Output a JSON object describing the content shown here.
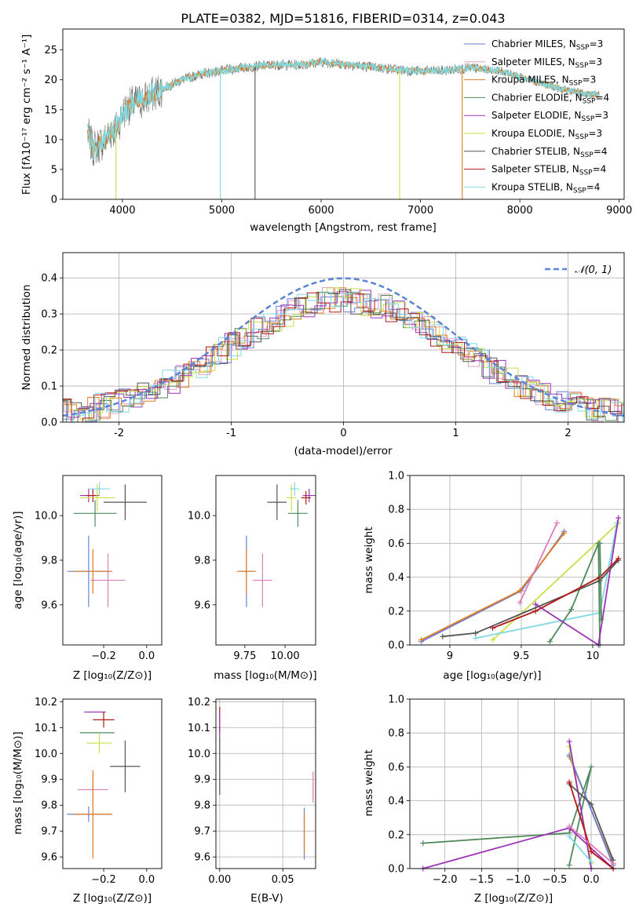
{
  "figure": {
    "title": "PLATE=0382, MJD=51816, FIBERID=0314, z=0.043"
  },
  "colors": {
    "Chabrier MILES": "#6b7fd7",
    "Salpeter MILES": "#e0a0c8",
    "Kroupa MILES": "#e07b22",
    "Chabrier ELODIE": "#4f8a5a",
    "Salpeter ELODIE": "#9b33b8",
    "Kroupa ELODIE": "#c9e04a",
    "Chabrier STELIB": "#555555",
    "Salpeter STELIB": "#b31818",
    "Kroupa STELIB": "#7fdbe0",
    "pink_model": "#e07ab8",
    "grid": "#b0b0b0",
    "norm_curve": "#5b84d6"
  },
  "chart_data": [
    {
      "panel": "spectrum",
      "type": "line",
      "xlabel": "wavelength [Angstrom, rest frame]",
      "ylabel": "Flux [fλ10⁻¹⁷ erg cm⁻² s⁻¹ A⁻¹]",
      "xlim": [
        3400,
        9050
      ],
      "ylim": [
        0,
        28.5
      ],
      "xticks": [
        4000,
        5000,
        6000,
        7000,
        8000,
        9000
      ],
      "yticks": [
        0,
        5,
        10,
        15,
        20,
        25
      ],
      "grid": false,
      "legend_position": "top-right",
      "continuum": {
        "x": [
          3650,
          3700,
          3800,
          3900,
          3950,
          4000,
          4100,
          4200,
          4400,
          4600,
          4800,
          5000,
          5200,
          5500,
          5800,
          6000,
          6300,
          6600,
          6900,
          7200,
          7500,
          7800,
          8100,
          8400,
          8700,
          8800
        ],
        "y": [
          11,
          8.5,
          9.5,
          11.5,
          12,
          14.5,
          16,
          16.5,
          18.5,
          20,
          21,
          21.5,
          22,
          22.5,
          22.5,
          23,
          22.5,
          22,
          21.5,
          21.5,
          22,
          21.5,
          20,
          18.5,
          17.5,
          17.5
        ]
      },
      "series": [
        {
          "name": "Chabrier MILES, N_SSP=3",
          "label_main": "Chabrier MILES, N",
          "label_sub": "SSP",
          "label_tail": "=3",
          "color_key": "Chabrier MILES"
        },
        {
          "name": "Salpeter MILES, N_SSP=3",
          "label_main": "Salpeter MILES, N",
          "label_sub": "SSP",
          "label_tail": "=3",
          "color_key": "Salpeter MILES"
        },
        {
          "name": "Kroupa MILES, N_SSP=3",
          "label_main": "Kroupa MILES, N",
          "label_sub": "SSP",
          "label_tail": "=3",
          "color_key": "Kroupa MILES"
        },
        {
          "name": "Chabrier ELODIE, N_SSP=4",
          "label_main": "Chabrier ELODIE, N",
          "label_sub": "SSP",
          "label_tail": "=4",
          "color_key": "Chabrier ELODIE"
        },
        {
          "name": "Salpeter ELODIE, N_SSP=3",
          "label_main": "Salpeter ELODIE, N",
          "label_sub": "SSP",
          "label_tail": "=3",
          "color_key": "Salpeter ELODIE"
        },
        {
          "name": "Kroupa ELODIE, N_SSP=3",
          "label_main": "Kroupa ELODIE, N",
          "label_sub": "SSP",
          "label_tail": "=3",
          "color_key": "Kroupa ELODIE"
        },
        {
          "name": "Chabrier STELIB, N_SSP=4",
          "label_main": "Chabrier STELIB, N",
          "label_sub": "SSP",
          "label_tail": "=4",
          "color_key": "Chabrier STELIB"
        },
        {
          "name": "Salpeter STELIB, N_SSP=4",
          "label_main": "Salpeter STELIB, N",
          "label_sub": "SSP",
          "label_tail": "=4",
          "color_key": "Salpeter STELIB"
        },
        {
          "name": "Kroupa STELIB, N_SSP=4",
          "label_main": "Kroupa STELIB, N",
          "label_sub": "SSP",
          "label_tail": "=4",
          "color_key": "Kroupa STELIB"
        }
      ],
      "dropouts": [
        {
          "x": 3935,
          "color_key": "Kroupa ELODIE"
        },
        {
          "x": 4985,
          "color_key": "Kroupa STELIB"
        },
        {
          "x": 5335,
          "color_key": "Chabrier STELIB"
        },
        {
          "x": 6790,
          "color_key": "Kroupa ELODIE"
        },
        {
          "x": 7420,
          "color_key": "Kroupa MILES"
        }
      ]
    },
    {
      "panel": "residuals",
      "type": "step",
      "xlabel": "(data-model)/error",
      "ylabel": "Normed distribution",
      "xlim": [
        -2.5,
        2.5
      ],
      "ylim": [
        0,
        0.47
      ],
      "xticks": [
        -2,
        -1,
        0,
        1,
        2
      ],
      "yticks": [
        0.0,
        0.1,
        0.2,
        0.3,
        0.4
      ],
      "grid": true,
      "legend": "𝒩(0, 1)",
      "legend_position": "top-right",
      "curve": "normal pdf, mean 0, sigma 1"
    },
    {
      "panel": "age-vs-Z",
      "type": "errorbar",
      "xlabel": "Z [log₁₀(Z/Z⊙)]",
      "ylabel": "age  [log₁₀(age/yr)]",
      "xlim": [
        -0.39,
        0.07
      ],
      "ylim": [
        9.42,
        10.18
      ],
      "xticks": [
        -0.2,
        0.0
      ],
      "xticklabels": [
        "−0.2",
        "0.0"
      ],
      "yticks": [
        9.6,
        9.8,
        10.0
      ],
      "yticklabels": [
        "9.6",
        "9.8",
        "10.0"
      ],
      "grid": false,
      "points": [
        {
          "x": -0.27,
          "y": 10.09,
          "xerr": 0.04,
          "yerr": 0.03,
          "color_key": "Salpeter ELODIE"
        },
        {
          "x": -0.25,
          "y": 10.09,
          "xerr": 0.03,
          "yerr": 0.03,
          "color_key": "Salpeter STELIB"
        },
        {
          "x": -0.23,
          "y": 10.08,
          "xerr": 0.08,
          "yerr": 0.06,
          "color_key": "Kroupa ELODIE"
        },
        {
          "x": -0.22,
          "y": 10.12,
          "xerr": 0.05,
          "yerr": 0.03,
          "color_key": "Kroupa STELIB"
        },
        {
          "x": -0.1,
          "y": 10.06,
          "xerr": 0.1,
          "yerr": 0.08,
          "color_key": "Chabrier STELIB"
        },
        {
          "x": -0.24,
          "y": 10.01,
          "xerr": 0.1,
          "yerr": 0.06,
          "color_key": "Chabrier ELODIE"
        },
        {
          "x": -0.27,
          "y": 9.75,
          "xerr": 0.1,
          "yerr": 0.16,
          "color_key": "Chabrier MILES"
        },
        {
          "x": -0.25,
          "y": 9.75,
          "xerr": 0.09,
          "yerr": 0.1,
          "color_key": "Kroupa MILES"
        },
        {
          "x": -0.18,
          "y": 9.71,
          "xerr": 0.08,
          "yerr": 0.12,
          "color_key": "pink_model"
        }
      ]
    },
    {
      "panel": "age-vs-mass",
      "type": "errorbar",
      "xlabel": "mass [log₁₀(M/M⊙)]",
      "ylabel": "",
      "xlim": [
        9.57,
        10.19
      ],
      "ylim": [
        9.42,
        10.18
      ],
      "xticks": [
        9.75,
        10.0
      ],
      "xticklabels": [
        "9.75",
        "10.00"
      ],
      "yticks": [
        9.6,
        9.8,
        10.0
      ],
      "yticklabels": [
        "9.6",
        "9.8",
        "10.0"
      ],
      "grid": false,
      "points": [
        {
          "x": 10.15,
          "y": 10.09,
          "xerr": 0.04,
          "yerr": 0.03,
          "color_key": "Salpeter ELODIE"
        },
        {
          "x": 10.13,
          "y": 10.08,
          "xerr": 0.03,
          "yerr": 0.03,
          "color_key": "Salpeter STELIB"
        },
        {
          "x": 10.04,
          "y": 10.08,
          "xerr": 0.03,
          "yerr": 0.06,
          "color_key": "Kroupa ELODIE"
        },
        {
          "x": 10.06,
          "y": 10.12,
          "xerr": 0.03,
          "yerr": 0.03,
          "color_key": "Kroupa STELIB"
        },
        {
          "x": 9.95,
          "y": 10.06,
          "xerr": 0.06,
          "yerr": 0.08,
          "color_key": "Chabrier STELIB"
        },
        {
          "x": 10.08,
          "y": 10.01,
          "xerr": 0.06,
          "yerr": 0.06,
          "color_key": "Chabrier ELODIE"
        },
        {
          "x": 9.76,
          "y": 9.75,
          "xerr": 0.04,
          "yerr": 0.16,
          "color_key": "Chabrier MILES"
        },
        {
          "x": 9.76,
          "y": 9.75,
          "xerr": 0.06,
          "yerr": 0.1,
          "color_key": "Kroupa MILES"
        },
        {
          "x": 9.86,
          "y": 9.71,
          "xerr": 0.06,
          "yerr": 0.12,
          "color_key": "pink_model"
        }
      ]
    },
    {
      "panel": "mass-weight-vs-age",
      "type": "line",
      "xlabel": "age  [log₁₀(age/yr)]",
      "ylabel": "mass weight",
      "xlim": [
        8.72,
        10.22
      ],
      "ylim": [
        0,
        1.0
      ],
      "xticks": [
        9.0,
        9.5,
        10.0
      ],
      "yticks": [
        0.0,
        0.2,
        0.4,
        0.6,
        0.8,
        1.0
      ],
      "grid": true,
      "series": [
        {
          "color_key": "Chabrier MILES",
          "x": [
            8.8,
            9.5,
            9.8
          ],
          "y": [
            0.02,
            0.32,
            0.67
          ]
        },
        {
          "color_key": "Kroupa MILES",
          "x": [
            8.8,
            9.49,
            9.8
          ],
          "y": [
            0.03,
            0.32,
            0.66
          ]
        },
        {
          "color_key": "pink_model",
          "x": [
            9.49,
            9.75
          ],
          "y": [
            0.25,
            0.72
          ]
        },
        {
          "color_key": "Kroupa ELODIE",
          "x": [
            9.3,
            10.18
          ],
          "y": [
            0.03,
            0.72
          ]
        },
        {
          "color_key": "Kroupa STELIB",
          "x": [
            9.18,
            10.05,
            10.17
          ],
          "y": [
            0.04,
            0.19,
            0.72
          ]
        },
        {
          "color_key": "Chabrier ELODIE",
          "x": [
            9.7,
            9.85,
            10.04,
            10.05
          ],
          "y": [
            0.02,
            0.21,
            0.6,
            0.0
          ]
        },
        {
          "color_key": "Salpeter ELODIE",
          "x": [
            9.6,
            10.04,
            10.18
          ],
          "y": [
            0.24,
            0.0,
            0.75
          ]
        },
        {
          "color_key": "Chabrier STELIB",
          "x": [
            8.95,
            9.18,
            10.05,
            10.18
          ],
          "y": [
            0.05,
            0.07,
            0.38,
            0.5
          ]
        },
        {
          "color_key": "Salpeter STELIB",
          "x": [
            9.3,
            9.6,
            10.05,
            10.18
          ],
          "y": [
            0.1,
            0.2,
            0.4,
            0.51
          ]
        },
        {
          "color_key": "Chabrier ELODIE",
          "x": [
            10.05,
            10.06
          ],
          "y": [
            0.6,
            0.15
          ]
        }
      ]
    },
    {
      "panel": "mass-vs-Z",
      "type": "errorbar",
      "xlabel": "Z [log₁₀(Z/Z⊙)]",
      "ylabel": "mass [log₁₀(M/M⊙)]",
      "xlim": [
        -0.39,
        0.07
      ],
      "ylim": [
        9.555,
        10.21
      ],
      "xticks": [
        -0.2,
        0.0
      ],
      "xticklabels": [
        "−0.2",
        "0.0"
      ],
      "yticks": [
        9.6,
        9.7,
        9.8,
        9.9,
        10.0,
        10.1,
        10.2
      ],
      "yticklabels": [
        "9.6",
        "9.7",
        "9.8",
        "9.9",
        "10.0",
        "10.1",
        "10.2"
      ],
      "grid": false,
      "points": [
        {
          "x": -0.24,
          "y": 10.16,
          "xerr": 0.05,
          "yerr": 0.0,
          "color_key": "Salpeter ELODIE"
        },
        {
          "x": -0.2,
          "y": 10.13,
          "xerr": 0.05,
          "yerr": 0.03,
          "color_key": "Salpeter STELIB"
        },
        {
          "x": -0.23,
          "y": 10.08,
          "xerr": 0.08,
          "yerr": 0.0,
          "color_key": "Chabrier ELODIE"
        },
        {
          "x": -0.22,
          "y": 10.04,
          "xerr": 0.06,
          "yerr": 0.04,
          "color_key": "Kroupa ELODIE"
        },
        {
          "x": -0.1,
          "y": 9.95,
          "xerr": 0.07,
          "yerr": 0.1,
          "color_key": "Chabrier STELIB"
        },
        {
          "x": -0.25,
          "y": 9.86,
          "xerr": 0.07,
          "yerr": 0.06,
          "color_key": "pink_model"
        },
        {
          "x": -0.27,
          "y": 9.765,
          "xerr": 0.1,
          "yerr": 0.03,
          "color_key": "Chabrier MILES"
        },
        {
          "x": -0.25,
          "y": 9.765,
          "xerr": 0.09,
          "yerr": 0.17,
          "color_key": "Kroupa MILES"
        }
      ]
    },
    {
      "panel": "mass-vs-EBV",
      "type": "errorbar",
      "xlabel": "E(B-V)",
      "ylabel": "",
      "xlim": [
        -0.003,
        0.076
      ],
      "ylim": [
        9.555,
        10.21
      ],
      "xticks": [
        0.0,
        0.05
      ],
      "xticklabels": [
        "0.00",
        "0.05"
      ],
      "yticks": [
        9.6,
        9.7,
        9.8,
        9.9,
        10.0,
        10.1,
        10.2
      ],
      "yticklabels": [
        "9.6",
        "9.7",
        "9.8",
        "9.9",
        "10.0",
        "10.1",
        "10.2"
      ],
      "grid": true,
      "points": [
        {
          "x": 0.0,
          "y": 10.13,
          "xerr": 0,
          "yerr": 0.05,
          "color_key": "Salpeter STELIB"
        },
        {
          "x": 0.0,
          "y": 10.1,
          "xerr": 0,
          "yerr": 0.06,
          "color_key": "Salpeter ELODIE"
        },
        {
          "x": 0.0,
          "y": 10.01,
          "xerr": 0,
          "yerr": 0.05,
          "color_key": "Kroupa STELIB"
        },
        {
          "x": 0.0,
          "y": 9.95,
          "xerr": 0,
          "yerr": 0.11,
          "color_key": "Chabrier STELIB"
        },
        {
          "x": 0.074,
          "y": 9.87,
          "xerr": 0,
          "yerr": 0.06,
          "color_key": "pink_model"
        },
        {
          "x": 0.067,
          "y": 9.69,
          "xerr": 0,
          "yerr": 0.1,
          "color_key": "Chabrier MILES"
        },
        {
          "x": 0.067,
          "y": 9.69,
          "xerr": 0,
          "yerr": 0.08,
          "color_key": "Kroupa MILES"
        }
      ]
    },
    {
      "panel": "mass-weight-vs-Z",
      "type": "line",
      "xlabel": "Z [log₁₀(Z/Z⊙)]",
      "ylabel": "mass weight",
      "xlim": [
        -2.48,
        0.45
      ],
      "ylim": [
        0,
        1.0
      ],
      "xticks": [
        -2.0,
        -1.5,
        -1.0,
        -0.5,
        0.0
      ],
      "xticklabels": [
        "−2.0",
        "−1.5",
        "−1.0",
        "−0.5",
        "0.0"
      ],
      "yticks": [
        0.0,
        0.2,
        0.4,
        0.6,
        0.8,
        1.0
      ],
      "grid": true,
      "series": [
        {
          "color_key": "Chabrier ELODIE",
          "x": [
            -2.3,
            -0.3,
            0.0,
            -0.3
          ],
          "y": [
            0.15,
            0.21,
            0.6,
            0.02
          ]
        },
        {
          "color_key": "Salpeter ELODIE",
          "x": [
            -2.3,
            -0.3,
            0.3
          ],
          "y": [
            0.0,
            0.24,
            0.0
          ]
        },
        {
          "color_key": "Kroupa MILES",
          "x": [
            -0.3,
            0.3
          ],
          "y": [
            0.66,
            0.03
          ]
        },
        {
          "color_key": "Chabrier MILES",
          "x": [
            -0.3,
            0.3
          ],
          "y": [
            0.67,
            0.02
          ]
        },
        {
          "color_key": "Kroupa ELODIE",
          "x": [
            -0.3,
            0.0
          ],
          "y": [
            0.72,
            0.03
          ]
        },
        {
          "color_key": "Salpeter ELODIE",
          "x": [
            -0.3,
            0.0
          ],
          "y": [
            0.75,
            0.0
          ]
        },
        {
          "color_key": "Chabrier STELIB",
          "x": [
            -0.3,
            0.0,
            0.3
          ],
          "y": [
            0.5,
            0.38,
            0.05
          ]
        },
        {
          "color_key": "Salpeter STELIB",
          "x": [
            -0.3,
            0.0,
            0.3
          ],
          "y": [
            0.51,
            0.1,
            0.0
          ]
        },
        {
          "color_key": "Kroupa STELIB",
          "x": [
            -0.3,
            0.0
          ],
          "y": [
            0.19,
            0.04
          ]
        },
        {
          "color_key": "pink_model",
          "x": [
            -0.3,
            0.3
          ],
          "y": [
            0.25,
            0.03
          ]
        }
      ]
    }
  ]
}
